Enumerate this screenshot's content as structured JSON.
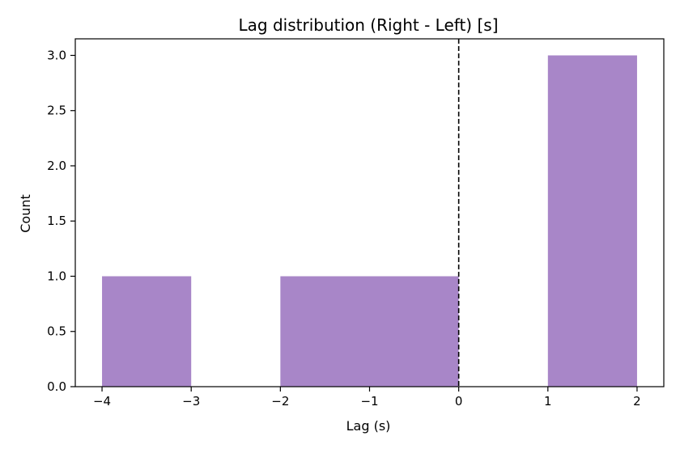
{
  "chart_data": {
    "type": "bar",
    "title": "Lag distribution (Right - Left) [s]",
    "xlabel": "Lag (s)",
    "ylabel": "Count",
    "bins": [
      {
        "x0": -4,
        "x1": -3,
        "count": 1
      },
      {
        "x0": -3,
        "x1": -2,
        "count": 0
      },
      {
        "x0": -2,
        "x1": -1,
        "count": 1
      },
      {
        "x0": -1,
        "x1": 0,
        "count": 1
      },
      {
        "x0": 0,
        "x1": 1,
        "count": 0
      },
      {
        "x0": 1,
        "x1": 2,
        "count": 3
      }
    ],
    "xlim": [
      -4.3,
      2.3
    ],
    "ylim": [
      0,
      3.15
    ],
    "xticks": [
      -4,
      -3,
      -2,
      -1,
      0,
      1,
      2
    ],
    "xtick_labels": [
      "−4",
      "−3",
      "−2",
      "−1",
      "0",
      "1",
      "2"
    ],
    "yticks": [
      0,
      0.5,
      1,
      1.5,
      2,
      2.5,
      3
    ],
    "ytick_labels": [
      "0.0",
      "0.5",
      "1.0",
      "1.5",
      "2.0",
      "2.5",
      "3.0"
    ],
    "reference_line": {
      "x": 0,
      "style": "dashed",
      "color": "#000000"
    },
    "bar_color": "#a886c8",
    "grid": false,
    "legend": "none"
  }
}
